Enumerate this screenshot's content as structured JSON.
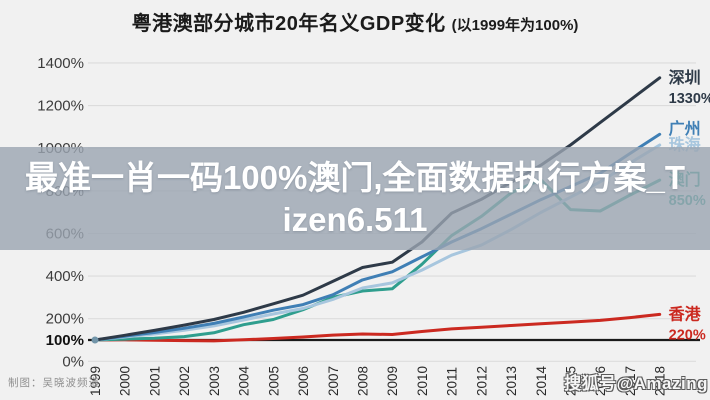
{
  "title": {
    "main": "粤港澳部分城市20年名义GDP变化",
    "suffix": "(以1999年为100%)"
  },
  "overlay": {
    "line1": "最准一肖一码100%澳门,全面数据执行方案_T",
    "line2": "izen6.511",
    "full_text": "最准一肖一码100%澳门,全面数据执行方案_Tizen6.511"
  },
  "credit": "制图：吴晓波频道",
  "watermark": "搜狐号@Amazing",
  "colors": {
    "background": "#f1f1f1",
    "overlay_band": "rgba(155,165,178,0.80)",
    "gridline": "#dcdcdc",
    "baseline_100": "#1a1a1a",
    "ytick_text": "#3c3c3c",
    "xtick_text": "#2b2b2b",
    "start_dot": "#7295a9"
  },
  "chart_data": {
    "type": "line",
    "title": "粤港澳部分城市20年名义GDP变化 (以1999年为100%)",
    "xlabel": "",
    "ylabel": "",
    "x": [
      1999,
      2000,
      2001,
      2002,
      2003,
      2004,
      2005,
      2006,
      2007,
      2008,
      2009,
      2010,
      2011,
      2012,
      2013,
      2014,
      2015,
      2016,
      2017,
      2018
    ],
    "ylim": [
      0,
      1400
    ],
    "ytick_step": 200,
    "extra_yticks": [
      100
    ],
    "baseline_value": 100,
    "grid": true,
    "legend_position": "right-of-line-ends",
    "series": [
      {
        "name": "深圳",
        "end_label": "1330%",
        "color": "#2e3a48",
        "values": [
          100,
          122,
          145,
          170,
          196,
          230,
          270,
          310,
          375,
          440,
          465,
          560,
          695,
          760,
          840,
          920,
          1015,
          1120,
          1225,
          1330
        ]
      },
      {
        "name": "广州",
        "end_label": "",
        "color": "#3f7fb5",
        "values": [
          100,
          118,
          135,
          155,
          178,
          208,
          240,
          266,
          312,
          382,
          420,
          490,
          560,
          622,
          690,
          758,
          820,
          882,
          975,
          1065
        ]
      },
      {
        "name": "珠海",
        "end_label": "",
        "color": "#a7c6de",
        "values": [
          100,
          114,
          128,
          146,
          166,
          194,
          222,
          248,
          290,
          344,
          368,
          428,
          498,
          545,
          618,
          698,
          770,
          842,
          930,
          1015
        ]
      },
      {
        "name": "澳门",
        "end_label": "850%",
        "color": "#2f9e8e",
        "values": [
          100,
          104,
          108,
          116,
          134,
          172,
          196,
          242,
          300,
          330,
          340,
          455,
          590,
          680,
          790,
          852,
          712,
          705,
          780,
          850
        ]
      },
      {
        "name": "香港",
        "end_label": "220%",
        "color": "#cb2920",
        "values": [
          100,
          101,
          99,
          97,
          96,
          101,
          107,
          114,
          123,
          128,
          126,
          140,
          152,
          160,
          168,
          176,
          184,
          192,
          205,
          220
        ]
      }
    ]
  }
}
